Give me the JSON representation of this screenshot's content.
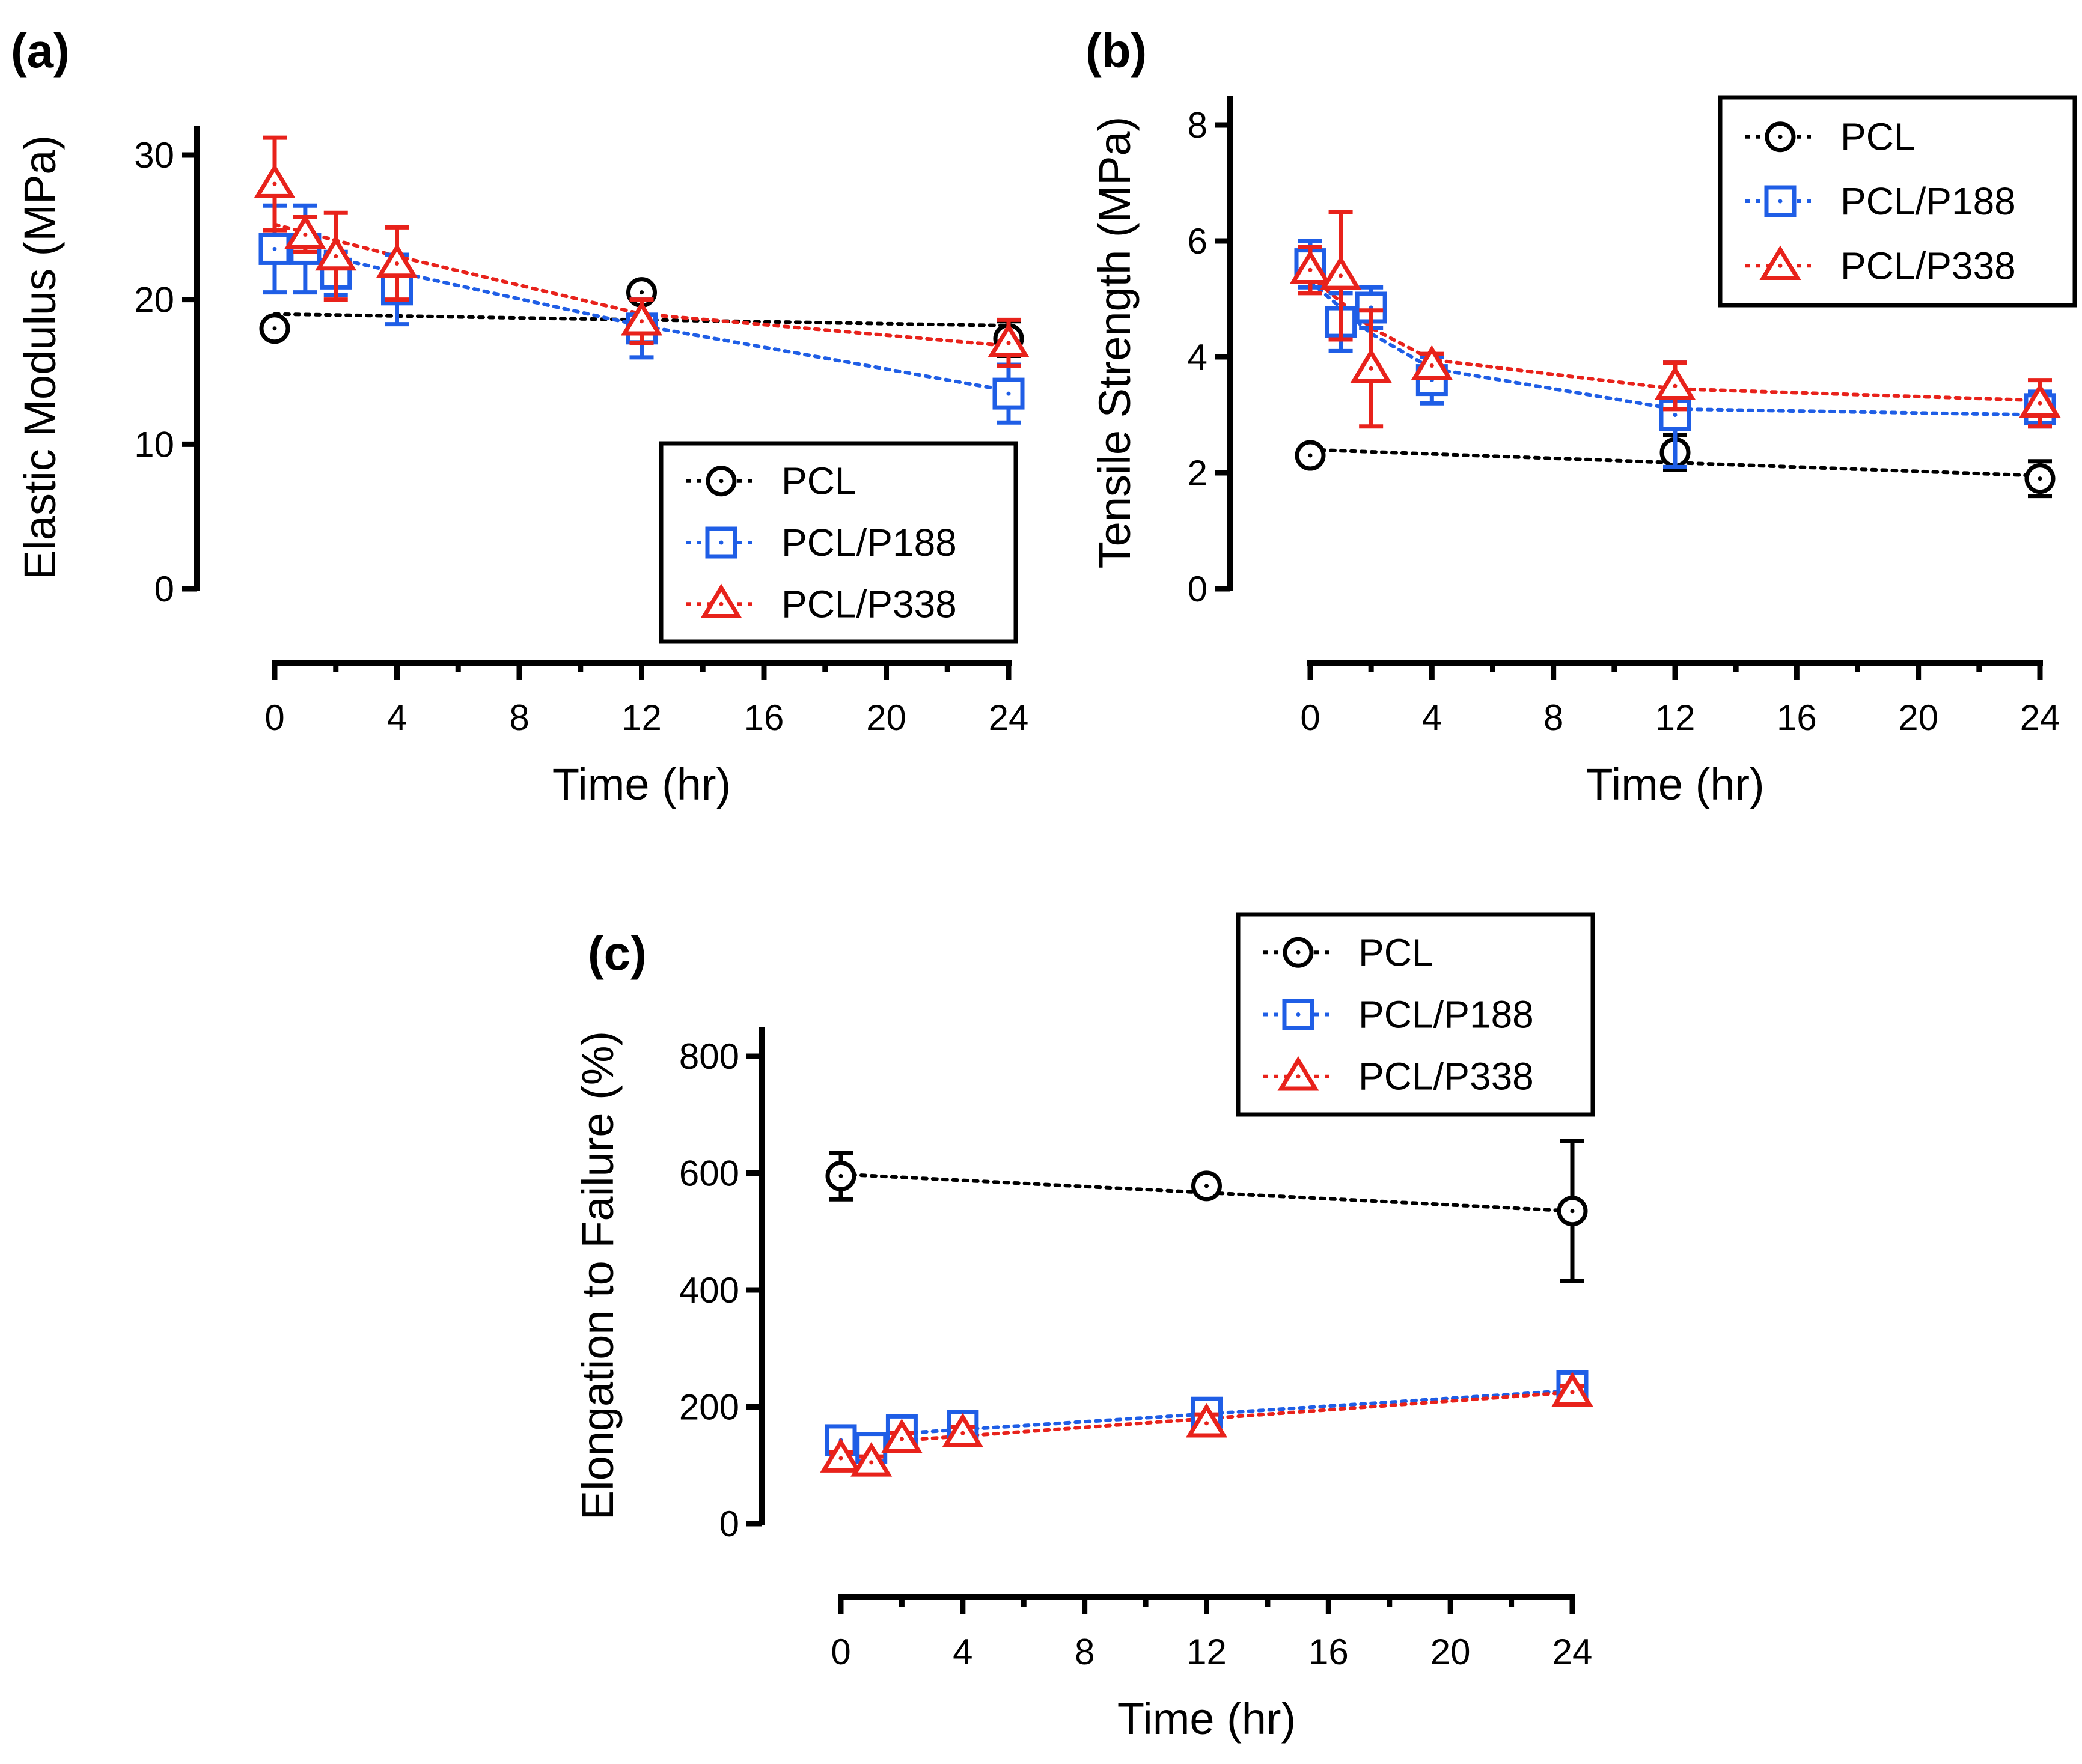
{
  "figure": {
    "colors": {
      "PCL": "#000000",
      "PCL/P188": "#1f5ee6",
      "PCL/P338": "#e8221b"
    }
  },
  "chart_data": [
    {
      "id": "a",
      "panel_label": "(a)",
      "type": "scatter",
      "title": "",
      "xlabel": "Time (hr)",
      "ylabel": "Elastic Modulus (MPa)",
      "xlim": [
        0,
        24
      ],
      "ylim": [
        0,
        30
      ],
      "xticks": [
        "0",
        "4",
        "8",
        "12",
        "16",
        "20",
        "24"
      ],
      "yticks": [
        "0",
        "10",
        "20",
        "30"
      ],
      "legend": "inside bottom-right",
      "series": [
        {
          "name": "PCL",
          "color": "#000000",
          "marker": "circle",
          "points": [
            {
              "x": 0,
              "y": 18.0,
              "err": 0.4
            },
            {
              "x": 12,
              "y": 20.5,
              "err": 0.5
            },
            {
              "x": 24,
              "y": 17.3,
              "err": 1.2
            }
          ],
          "fit": [
            {
              "x": 0,
              "y": 19.0
            },
            {
              "x": 24,
              "y": 18.2
            }
          ]
        },
        {
          "name": "PCL/P188",
          "color": "#1f5ee6",
          "marker": "square",
          "points": [
            {
              "x": 0,
              "y": 23.5,
              "err": 3.0
            },
            {
              "x": 1,
              "y": 23.5,
              "err": 3.0
            },
            {
              "x": 2,
              "y": 21.8,
              "err": 1.5
            },
            {
              "x": 4,
              "y": 20.7,
              "err": 2.4
            },
            {
              "x": 12,
              "y": 18.0,
              "err": 2.0
            },
            {
              "x": 24,
              "y": 13.5,
              "err": 2.0
            }
          ],
          "fit": [
            {
              "x": 0,
              "y": 23.8
            },
            {
              "x": 4,
              "y": 21.9
            },
            {
              "x": 12,
              "y": 18.2
            },
            {
              "x": 24,
              "y": 13.7
            }
          ]
        },
        {
          "name": "PCL/P338",
          "color": "#e8221b",
          "marker": "triangle",
          "points": [
            {
              "x": 0,
              "y": 28.0,
              "err": 3.2
            },
            {
              "x": 1,
              "y": 24.5,
              "err": 1.2
            },
            {
              "x": 2,
              "y": 23.0,
              "err": 3.0
            },
            {
              "x": 4,
              "y": 22.5,
              "err": 2.5
            },
            {
              "x": 12,
              "y": 18.5,
              "err": 1.5
            },
            {
              "x": 24,
              "y": 17.0,
              "err": 1.6
            }
          ],
          "fit": [
            {
              "x": 0,
              "y": 25.2
            },
            {
              "x": 4,
              "y": 23.0
            },
            {
              "x": 12,
              "y": 19.0
            },
            {
              "x": 24,
              "y": 16.8
            }
          ]
        }
      ]
    },
    {
      "id": "b",
      "panel_label": "(b)",
      "type": "scatter",
      "title": "",
      "xlabel": "Time (hr)",
      "ylabel": "Tensile Strength (MPa)",
      "xlim": [
        0,
        24
      ],
      "ylim": [
        0,
        8
      ],
      "xticks": [
        "0",
        "4",
        "8",
        "12",
        "16",
        "20",
        "24"
      ],
      "yticks": [
        "0",
        "2",
        "4",
        "6",
        "8"
      ],
      "legend": "inside top-right",
      "series": [
        {
          "name": "PCL",
          "color": "#000000",
          "marker": "circle",
          "points": [
            {
              "x": 0,
              "y": 2.3,
              "err": 0.1
            },
            {
              "x": 12,
              "y": 2.35,
              "err": 0.3
            },
            {
              "x": 24,
              "y": 1.9,
              "err": 0.3
            }
          ],
          "fit": [
            {
              "x": 0,
              "y": 2.4
            },
            {
              "x": 24,
              "y": 1.95
            }
          ]
        },
        {
          "name": "PCL/P188",
          "color": "#1f5ee6",
          "marker": "square",
          "points": [
            {
              "x": 0,
              "y": 5.6,
              "err": 0.4
            },
            {
              "x": 1,
              "y": 4.6,
              "err": 0.5
            },
            {
              "x": 2,
              "y": 4.85,
              "err": 0.35
            },
            {
              "x": 4,
              "y": 3.6,
              "err": 0.4
            },
            {
              "x": 12,
              "y": 3.0,
              "err": 0.9
            },
            {
              "x": 24,
              "y": 3.1,
              "err": 0.3
            }
          ],
          "fit": [
            {
              "x": 0,
              "y": 5.3
            },
            {
              "x": 2,
              "y": 4.4
            },
            {
              "x": 4,
              "y": 3.8
            },
            {
              "x": 12,
              "y": 3.1
            },
            {
              "x": 24,
              "y": 3.0
            }
          ]
        },
        {
          "name": "PCL/P338",
          "color": "#e8221b",
          "marker": "triangle",
          "points": [
            {
              "x": 0,
              "y": 5.5,
              "err": 0.4
            },
            {
              "x": 1,
              "y": 5.4,
              "err": 1.1
            },
            {
              "x": 2,
              "y": 3.8,
              "err": 1.0
            },
            {
              "x": 4,
              "y": 3.85,
              "err": 0.2
            },
            {
              "x": 12,
              "y": 3.5,
              "err": 0.4
            },
            {
              "x": 24,
              "y": 3.2,
              "err": 0.4
            }
          ],
          "fit": [
            {
              "x": 0,
              "y": 5.4
            },
            {
              "x": 2,
              "y": 4.5
            },
            {
              "x": 4,
              "y": 3.95
            },
            {
              "x": 12,
              "y": 3.45
            },
            {
              "x": 24,
              "y": 3.25
            }
          ]
        }
      ]
    },
    {
      "id": "c",
      "panel_label": "(c)",
      "type": "scatter",
      "title": "",
      "xlabel": "Time (hr)",
      "ylabel": "Elongation to Failure (%)",
      "xlim": [
        0,
        24
      ],
      "ylim": [
        0,
        800
      ],
      "xticks": [
        "0",
        "4",
        "8",
        "12",
        "16",
        "20",
        "24"
      ],
      "yticks": [
        "0",
        "200",
        "400",
        "600",
        "800"
      ],
      "legend": "outside top-right",
      "series": [
        {
          "name": "PCL",
          "color": "#000000",
          "marker": "circle",
          "points": [
            {
              "x": 0,
              "y": 595,
              "err": 40
            },
            {
              "x": 12,
              "y": 578,
              "err": 10
            },
            {
              "x": 24,
              "y": 535,
              "err": 120
            }
          ],
          "fit": [
            {
              "x": 0,
              "y": 598
            },
            {
              "x": 24,
              "y": 535
            }
          ]
        },
        {
          "name": "PCL/P188",
          "color": "#1f5ee6",
          "marker": "square",
          "points": [
            {
              "x": 0,
              "y": 143,
              "err": 15
            },
            {
              "x": 1,
              "y": 130,
              "err": 10
            },
            {
              "x": 2,
              "y": 160,
              "err": 10
            },
            {
              "x": 4,
              "y": 168,
              "err": 10
            },
            {
              "x": 12,
              "y": 190,
              "err": 15
            },
            {
              "x": 24,
              "y": 235,
              "err": 10
            }
          ],
          "fit": [
            {
              "x": 0,
              "y": 148
            },
            {
              "x": 24,
              "y": 228
            }
          ]
        },
        {
          "name": "PCL/P338",
          "color": "#e8221b",
          "marker": "triangle",
          "points": [
            {
              "x": 0,
              "y": 112,
              "err": 10
            },
            {
              "x": 1,
              "y": 105,
              "err": 10
            },
            {
              "x": 2,
              "y": 145,
              "err": 10
            },
            {
              "x": 4,
              "y": 155,
              "err": 10
            },
            {
              "x": 12,
              "y": 172,
              "err": 15
            },
            {
              "x": 24,
              "y": 225,
              "err": 10
            }
          ],
          "fit": [
            {
              "x": 0,
              "y": 135
            },
            {
              "x": 24,
              "y": 225
            }
          ]
        }
      ]
    }
  ]
}
